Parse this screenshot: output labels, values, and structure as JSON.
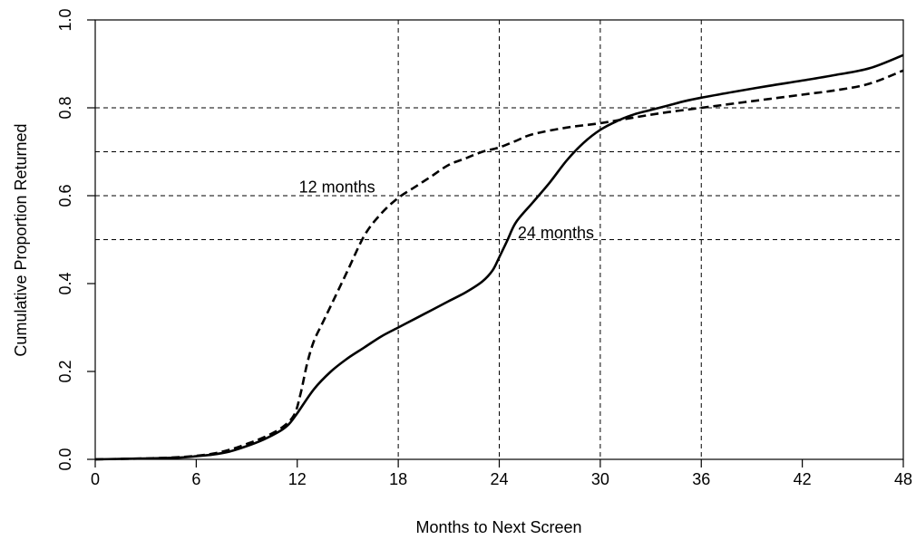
{
  "chart_data": {
    "type": "line",
    "title": "",
    "xlabel": "Months to Next Screen",
    "ylabel": "Cumulative Proportion Returned",
    "xlim": [
      0,
      48
    ],
    "ylim": [
      0,
      1
    ],
    "x_ticks": [
      0,
      6,
      12,
      18,
      24,
      30,
      36,
      42,
      48
    ],
    "y_ticks": [
      0.0,
      0.2,
      0.4,
      0.6,
      0.8,
      1.0
    ],
    "x_tick_labels": [
      "0",
      "6",
      "12",
      "18",
      "24",
      "30",
      "36",
      "42",
      "48"
    ],
    "y_tick_labels": [
      "0.0",
      "0.2",
      "0.4",
      "0.6",
      "0.8",
      "1.0"
    ],
    "reference_lines": {
      "vertical_x": [
        18,
        24,
        30,
        36
      ],
      "horizontal_y": [
        0.5,
        0.6,
        0.7,
        0.8
      ],
      "style": "dashed"
    },
    "series": [
      {
        "name": "12 months",
        "line_style": "dashed",
        "color": "#000000",
        "points": [
          [
            0,
            0
          ],
          [
            3,
            0.002
          ],
          [
            5,
            0.005
          ],
          [
            6,
            0.008
          ],
          [
            7,
            0.013
          ],
          [
            8,
            0.022
          ],
          [
            9,
            0.035
          ],
          [
            10,
            0.05
          ],
          [
            11,
            0.07
          ],
          [
            11.8,
            0.1
          ],
          [
            12.2,
            0.15
          ],
          [
            12.6,
            0.22
          ],
          [
            13,
            0.27
          ],
          [
            13.5,
            0.31
          ],
          [
            14,
            0.35
          ],
          [
            15,
            0.43
          ],
          [
            16,
            0.51
          ],
          [
            17,
            0.56
          ],
          [
            18,
            0.595
          ],
          [
            19,
            0.62
          ],
          [
            20,
            0.645
          ],
          [
            21,
            0.67
          ],
          [
            22,
            0.685
          ],
          [
            23,
            0.7
          ],
          [
            24,
            0.71
          ],
          [
            25,
            0.725
          ],
          [
            26,
            0.74
          ],
          [
            28,
            0.755
          ],
          [
            30,
            0.765
          ],
          [
            32,
            0.778
          ],
          [
            34,
            0.79
          ],
          [
            36,
            0.8
          ],
          [
            38,
            0.81
          ],
          [
            40,
            0.82
          ],
          [
            42,
            0.83
          ],
          [
            44,
            0.84
          ],
          [
            46,
            0.855
          ],
          [
            48,
            0.885
          ]
        ]
      },
      {
        "name": "24 months",
        "line_style": "solid",
        "color": "#000000",
        "points": [
          [
            0,
            0
          ],
          [
            3,
            0.002
          ],
          [
            5,
            0.004
          ],
          [
            6,
            0.007
          ],
          [
            7,
            0.011
          ],
          [
            8,
            0.018
          ],
          [
            9,
            0.03
          ],
          [
            10,
            0.045
          ],
          [
            11,
            0.065
          ],
          [
            11.5,
            0.08
          ],
          [
            12,
            0.105
          ],
          [
            13,
            0.16
          ],
          [
            14,
            0.2
          ],
          [
            15,
            0.23
          ],
          [
            16,
            0.255
          ],
          [
            17,
            0.28
          ],
          [
            18,
            0.3
          ],
          [
            19,
            0.32
          ],
          [
            20,
            0.34
          ],
          [
            21,
            0.36
          ],
          [
            22,
            0.38
          ],
          [
            23,
            0.405
          ],
          [
            23.6,
            0.43
          ],
          [
            24,
            0.46
          ],
          [
            24.5,
            0.5
          ],
          [
            25,
            0.54
          ],
          [
            26,
            0.585
          ],
          [
            27,
            0.63
          ],
          [
            28,
            0.68
          ],
          [
            29,
            0.72
          ],
          [
            30,
            0.75
          ],
          [
            31,
            0.77
          ],
          [
            32,
            0.785
          ],
          [
            33,
            0.795
          ],
          [
            34,
            0.805
          ],
          [
            35,
            0.815
          ],
          [
            36,
            0.823
          ],
          [
            38,
            0.837
          ],
          [
            40,
            0.85
          ],
          [
            42,
            0.862
          ],
          [
            44,
            0.875
          ],
          [
            46,
            0.89
          ],
          [
            48,
            0.92
          ]
        ]
      }
    ],
    "annotations": [
      {
        "text": "12 months",
        "x": 12.1,
        "y": 0.62
      },
      {
        "text": "24 months",
        "x": 25.1,
        "y": 0.515
      }
    ],
    "legend": "none",
    "grid": false
  }
}
